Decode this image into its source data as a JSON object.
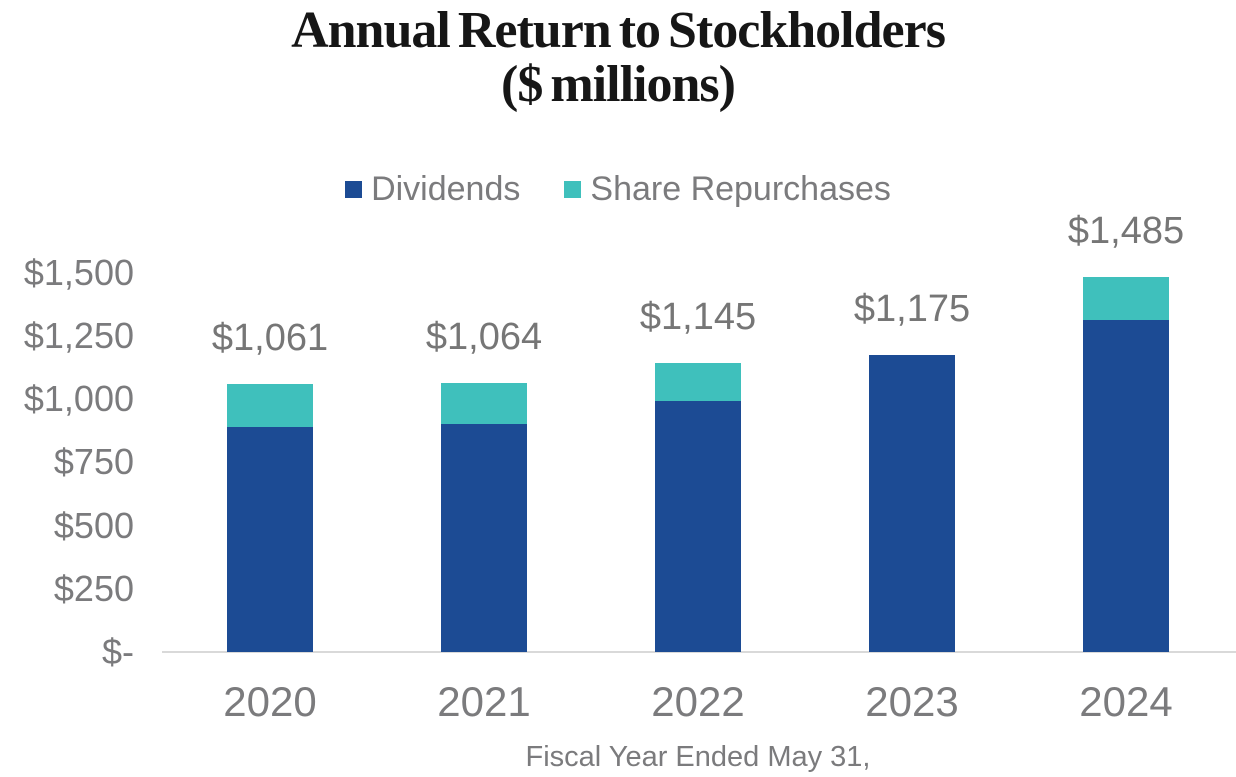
{
  "title": {
    "line1": "Annual Return to Stockholders",
    "line2": "($ millions)"
  },
  "legend": {
    "items": [
      {
        "label": "Dividends",
        "color": "#1C4B94"
      },
      {
        "label": "Share Repurchases",
        "color": "#3FC0BC"
      }
    ]
  },
  "chart_data": {
    "type": "bar",
    "stacked": true,
    "title": "Annual Return to Stockholders ($ millions)",
    "categories": [
      "2020",
      "2021",
      "2022",
      "2023",
      "2024"
    ],
    "series": [
      {
        "name": "Dividends",
        "color": "#1C4B94",
        "values": [
          889,
          901,
          995,
          1175,
          1313
        ]
      },
      {
        "name": "Share Repurchases",
        "color": "#3FC0BC",
        "values": [
          172,
          163,
          150,
          0,
          172
        ]
      }
    ],
    "totals": [
      1061,
      1064,
      1145,
      1175,
      1485
    ],
    "total_labels": [
      "$1,061",
      "$1,064",
      "$1,145",
      "$1,175",
      "$1,485"
    ],
    "xlabel": "Fiscal Year Ended May 31,",
    "ylabel": "",
    "ylim": [
      0,
      1500
    ],
    "yticks": [
      0,
      250,
      500,
      750,
      1000,
      1250,
      1500
    ],
    "ytick_labels": [
      "$-",
      "$250",
      "$500",
      "$750",
      "$1,000",
      "$1,250",
      "$1,500"
    ],
    "grid": false,
    "legend_position": "top"
  },
  "colors": {
    "dividends": "#1C4B94",
    "share_repurchases": "#3FC0BC",
    "text_gray": "#7B7B7D",
    "data_label_gray": "#767676",
    "title_text": "#161616",
    "baseline": "#D9D9D9",
    "background": "#FFFFFF"
  }
}
